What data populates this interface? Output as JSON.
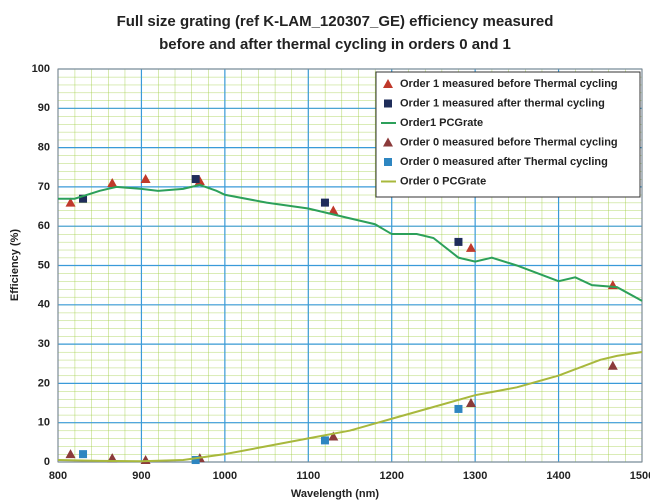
{
  "chart_data": {
    "type": "line",
    "title": [
      "Full size grating  (ref K-LAM_120307_GE) efficiency measured",
      "before and after thermal cycling in orders 0 and 1"
    ],
    "xlabel": "Wavelength (nm)",
    "ylabel": "Efficiency (%)",
    "xlim": [
      800,
      1500
    ],
    "xticks": [
      800,
      900,
      1000,
      1100,
      1200,
      1300,
      1400,
      1500
    ],
    "ylim": [
      0,
      100
    ],
    "yticks": [
      0,
      10,
      20,
      30,
      40,
      50,
      60,
      70,
      80,
      90,
      100
    ],
    "grid": true,
    "legend": "upper right",
    "series": [
      {
        "name": "Order 1 measured before Thermal cycling",
        "marker": "triangle",
        "color": "#c0392b",
        "x": [
          815,
          865,
          905,
          970,
          1130,
          1295,
          1465
        ],
        "values": [
          66,
          71,
          72,
          71.5,
          64,
          54.5,
          45
        ]
      },
      {
        "name": "Order 1 measured after thermal cycling",
        "marker": "square",
        "color": "#1f2d5a",
        "x": [
          830,
          965,
          1120,
          1280
        ],
        "values": [
          67,
          72,
          66,
          56
        ]
      },
      {
        "name": "Order1 PCGrate",
        "marker": "line",
        "color": "#2ca05a",
        "x": [
          800,
          820,
          850,
          870,
          900,
          920,
          950,
          970,
          990,
          1000,
          1050,
          1100,
          1150,
          1180,
          1200,
          1230,
          1250,
          1280,
          1300,
          1320,
          1350,
          1400,
          1420,
          1440,
          1470,
          1500
        ],
        "values": [
          67,
          67,
          69,
          70,
          69.5,
          69,
          69.5,
          70.5,
          69,
          68,
          66,
          64.5,
          62,
          60.5,
          58,
          58,
          57,
          52,
          51,
          52,
          50,
          46,
          47,
          45,
          44.5,
          41
        ]
      },
      {
        "name": "Order 0 measured before Thermal cycling",
        "marker": "triangle",
        "color": "#8b3a3a",
        "x": [
          815,
          865,
          905,
          970,
          1130,
          1295,
          1465
        ],
        "values": [
          2,
          1,
          0.5,
          1,
          6.5,
          15,
          24.5
        ]
      },
      {
        "name": "Order 0 measured after Thermal cycling",
        "marker": "square",
        "color": "#2e86c1",
        "x": [
          830,
          965,
          1120,
          1280
        ],
        "values": [
          2,
          0.5,
          5.5,
          13.5
        ]
      },
      {
        "name": "Order 0 PCGrate",
        "marker": "line",
        "color": "#a8b83c",
        "x": [
          800,
          850,
          900,
          950,
          1000,
          1050,
          1100,
          1150,
          1200,
          1250,
          1300,
          1350,
          1400,
          1450,
          1470,
          1500
        ],
        "values": [
          0.5,
          0.3,
          0.2,
          0.5,
          2,
          4,
          6,
          8,
          11,
          14,
          17,
          19,
          22,
          26,
          27,
          28
        ]
      }
    ]
  }
}
